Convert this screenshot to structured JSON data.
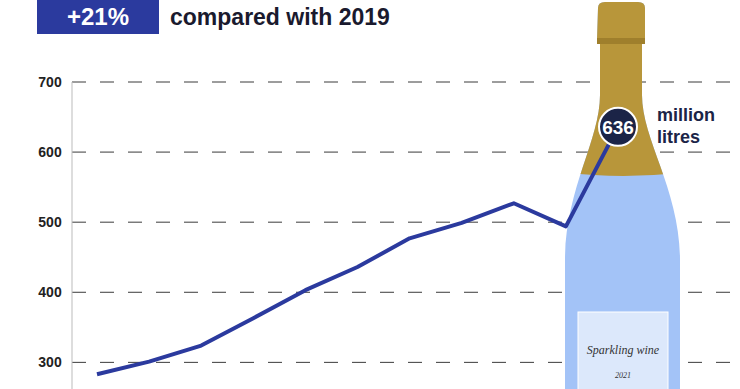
{
  "chart_data": {
    "type": "line",
    "title": "+21%",
    "subtitle": "compared with 2019",
    "categories": [
      null,
      null,
      null,
      null,
      null,
      null,
      null,
      null,
      null,
      null,
      null
    ],
    "values": [
      283,
      301,
      324,
      363,
      403,
      436,
      477,
      499,
      527,
      494,
      636
    ],
    "color": "#2b3a9e",
    "ylim": [
      262,
      700
    ],
    "yticks": [
      300,
      400,
      500,
      600,
      700
    ],
    "grid": true,
    "tick_labels": "y",
    "callout": {
      "label": "636",
      "unit": "million litres"
    },
    "bottle_label": "Sparkling wine",
    "bottle_year": "2021"
  }
}
